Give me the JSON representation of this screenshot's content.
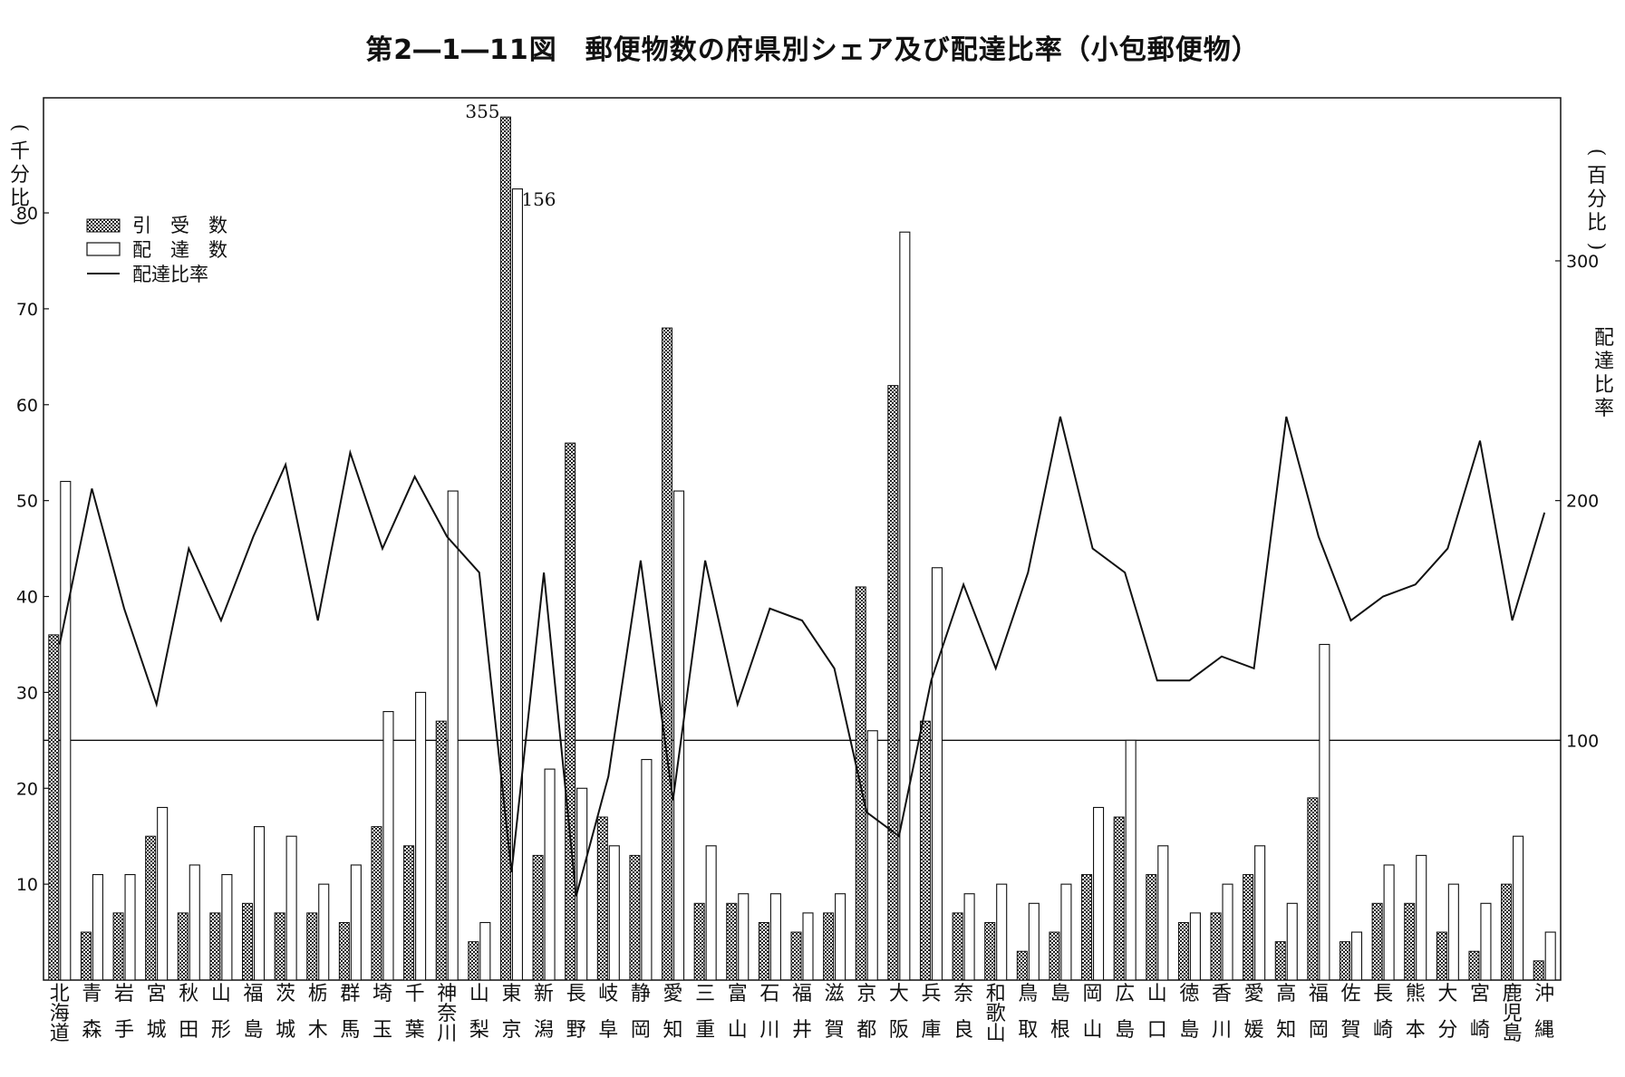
{
  "chart_data": {
    "type": "bar",
    "title": "第2―1―11図　郵便物数の府県別シェア及び配達比率（小包郵便物）",
    "left_axis": {
      "title": "(千分比)",
      "ticks": [
        10,
        20,
        30,
        40,
        50,
        60,
        70,
        80
      ],
      "range": [
        0,
        92
      ]
    },
    "right_axis": {
      "title_top": "(百分比)",
      "title_side": "配達比率",
      "ticks": [
        100,
        200,
        300
      ],
      "range": [
        0,
        368
      ]
    },
    "reference_value": 100,
    "categories": [
      "北海道",
      "青森",
      "岩手",
      "宮城",
      "秋田",
      "山形",
      "福島",
      "茨城",
      "栃木",
      "群馬",
      "埼玉",
      "千葉",
      "神奈川",
      "山梨",
      "東京",
      "新潟",
      "長野",
      "岐阜",
      "静岡",
      "愛知",
      "三重",
      "富山",
      "石川",
      "福井",
      "滋賀",
      "京都",
      "大阪",
      "兵庫",
      "奈良",
      "和歌山",
      "鳥取",
      "島根",
      "岡山",
      "広島",
      "山口",
      "徳島",
      "香川",
      "愛媛",
      "高知",
      "福岡",
      "佐賀",
      "長崎",
      "熊本",
      "大分",
      "宮崎",
      "鹿児島",
      "沖縄"
    ],
    "series": [
      {
        "name": "引受数",
        "values": [
          36,
          5,
          7,
          15,
          7,
          7,
          8,
          7,
          7,
          6,
          16,
          14,
          27,
          4,
          355,
          13,
          56,
          17,
          13,
          68,
          8,
          8,
          6,
          5,
          7,
          41,
          62,
          27,
          7,
          6,
          3,
          5,
          11,
          17,
          11,
          6,
          7,
          11,
          4,
          19,
          4,
          8,
          8,
          5,
          3,
          10,
          2
        ]
      },
      {
        "name": "配達数",
        "values": [
          52,
          11,
          11,
          18,
          12,
          11,
          16,
          15,
          10,
          12,
          28,
          30,
          51,
          6,
          156,
          22,
          20,
          14,
          23,
          51,
          14,
          9,
          9,
          7,
          9,
          26,
          78,
          43,
          9,
          10,
          8,
          10,
          18,
          25,
          14,
          7,
          10,
          14,
          8,
          35,
          5,
          12,
          13,
          10,
          8,
          15,
          5
        ]
      },
      {
        "name": "配達比率",
        "values": [
          140,
          205,
          155,
          115,
          180,
          150,
          185,
          215,
          150,
          220,
          180,
          210,
          185,
          170,
          45,
          170,
          35,
          85,
          175,
          75,
          175,
          115,
          155,
          150,
          130,
          70,
          60,
          125,
          165,
          130,
          170,
          235,
          180,
          170,
          125,
          125,
          135,
          130,
          235,
          185,
          150,
          160,
          165,
          180,
          225,
          150,
          195
        ]
      }
    ],
    "annotations": [
      "355",
      "156"
    ],
    "legend": {
      "position": "top-left",
      "items": [
        "引受数",
        "配達数",
        "配達比率"
      ],
      "display_items": [
        "引　受　数",
        "配　達　数",
        "配達比率"
      ]
    },
    "grid": false
  }
}
